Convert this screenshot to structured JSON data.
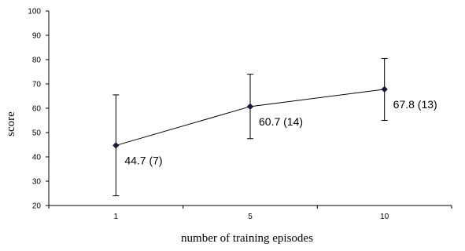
{
  "chart_data": {
    "type": "line",
    "title": "",
    "xlabel": "number of training episodes",
    "ylabel": "score",
    "ylim": [
      20,
      100
    ],
    "yticks": [
      20,
      30,
      40,
      50,
      60,
      70,
      80,
      90,
      100
    ],
    "categories": [
      "1",
      "5",
      "10"
    ],
    "values": [
      44.7,
      60.7,
      67.8
    ],
    "error_low": [
      24,
      47.5,
      55
    ],
    "error_high": [
      65.5,
      74,
      80.5
    ],
    "data_labels": [
      "44.7 (7)",
      "60.7 (14)",
      "67.8 (13)"
    ],
    "grid": false,
    "legend": "none"
  }
}
